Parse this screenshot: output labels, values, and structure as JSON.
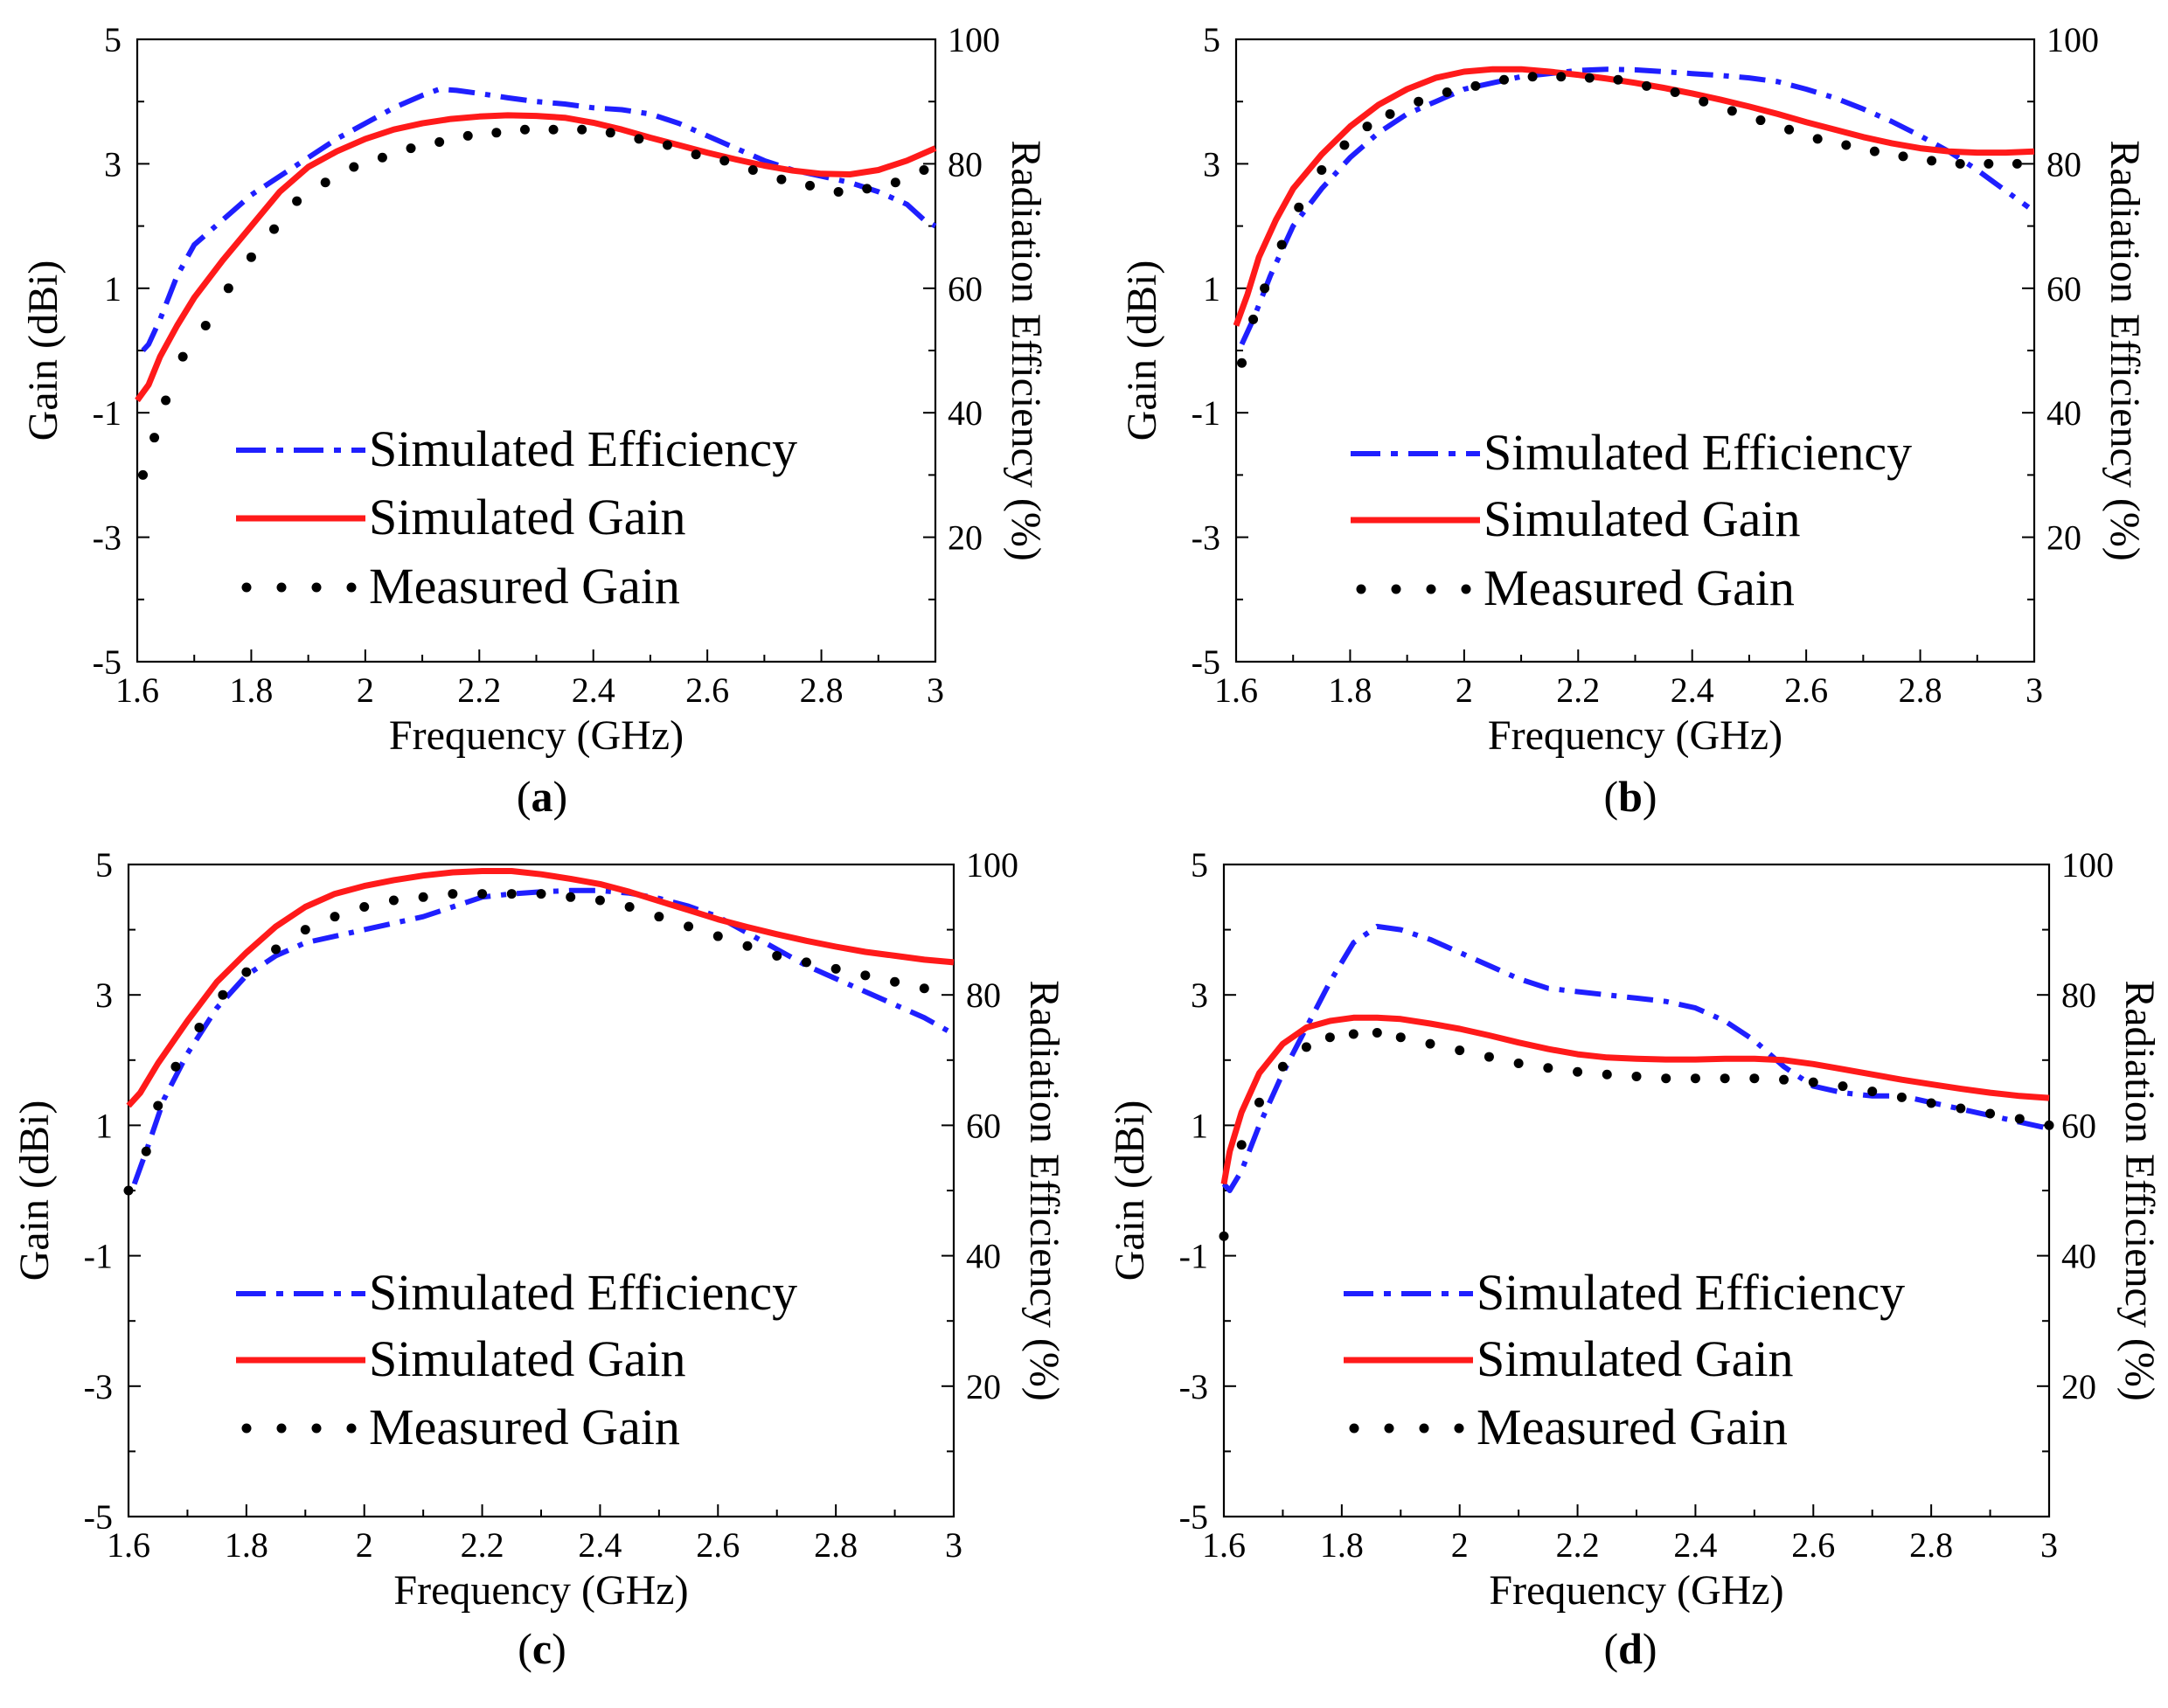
{
  "figure": {
    "legend": {
      "efficiency": "Simulated Efficiency",
      "simulated_gain": "Simulated Gain",
      "measured_gain": "Measured Gain"
    },
    "colors": {
      "efficiency": "#1f1fff",
      "simulated_gain": "#ff1a1a",
      "measured_gain": "#000000",
      "axes": "#000000"
    }
  },
  "chart_data": [
    {
      "panel": "a",
      "caption_open": "(",
      "caption_letter": "a",
      "caption_close": ")",
      "type": "line",
      "xlabel": "Frequency (GHz)",
      "ylabel": "Gain (dBi)",
      "y2label": "Radiation Efficiency (%)",
      "xlim": [
        1.6,
        3
      ],
      "ylim": [
        -5,
        5
      ],
      "y2lim": [
        0,
        100
      ],
      "xticks": [
        "1.6",
        "1.8",
        "2",
        "2.2",
        "2.4",
        "2.6",
        "2.8",
        "3"
      ],
      "yticks": [
        "5",
        "3",
        "1",
        "-1",
        "-3",
        "-5"
      ],
      "y2ticks": [
        "100",
        "80",
        "60",
        "40",
        "20"
      ],
      "series": [
        {
          "name": "Simulated Efficiency",
          "axis": "right",
          "x": [
            1.61,
            1.62,
            1.64,
            1.67,
            1.7,
            1.75,
            1.8,
            1.85,
            1.9,
            1.95,
            2.0,
            2.05,
            2.1,
            2.13,
            2.16,
            2.2,
            2.25,
            2.3,
            2.35,
            2.4,
            2.45,
            2.5,
            2.55,
            2.6,
            2.65,
            2.7,
            2.75,
            2.8,
            2.85,
            2.9,
            2.95,
            2.98,
            3.0
          ],
          "values": [
            50,
            51,
            55,
            62,
            67,
            71,
            75,
            78,
            81,
            84,
            86.5,
            89,
            91,
            92,
            91.8,
            91.3,
            90.6,
            90.0,
            89.6,
            89.0,
            88.7,
            88.0,
            86.5,
            84.5,
            82.5,
            80.5,
            79.0,
            78.0,
            77.0,
            75.5,
            73.5,
            71.0,
            70.0
          ]
        },
        {
          "name": "Simulated Gain",
          "axis": "left",
          "x": [
            1.6,
            1.62,
            1.64,
            1.67,
            1.7,
            1.75,
            1.8,
            1.85,
            1.9,
            1.95,
            2.0,
            2.05,
            2.1,
            2.15,
            2.2,
            2.25,
            2.3,
            2.35,
            2.4,
            2.45,
            2.5,
            2.55,
            2.6,
            2.65,
            2.7,
            2.75,
            2.8,
            2.85,
            2.9,
            2.95,
            3.0
          ],
          "values": [
            -0.8,
            -0.55,
            -0.1,
            0.4,
            0.85,
            1.45,
            2.0,
            2.55,
            2.95,
            3.2,
            3.4,
            3.55,
            3.65,
            3.72,
            3.76,
            3.78,
            3.77,
            3.74,
            3.66,
            3.55,
            3.42,
            3.3,
            3.18,
            3.07,
            2.97,
            2.89,
            2.84,
            2.83,
            2.9,
            3.05,
            3.25
          ]
        },
        {
          "name": "Measured Gain",
          "axis": "left",
          "x": [
            1.61,
            1.63,
            1.65,
            1.68,
            1.72,
            1.76,
            1.8,
            1.84,
            1.88,
            1.93,
            1.98,
            2.03,
            2.08,
            2.13,
            2.18,
            2.23,
            2.28,
            2.33,
            2.38,
            2.43,
            2.48,
            2.53,
            2.58,
            2.63,
            2.68,
            2.73,
            2.78,
            2.83,
            2.88,
            2.93,
            2.98
          ],
          "values": [
            -2.0,
            -1.4,
            -0.8,
            -0.1,
            0.4,
            1.0,
            1.5,
            1.95,
            2.4,
            2.7,
            2.95,
            3.1,
            3.25,
            3.35,
            3.45,
            3.5,
            3.55,
            3.55,
            3.55,
            3.5,
            3.4,
            3.3,
            3.15,
            3.05,
            2.9,
            2.75,
            2.65,
            2.55,
            2.6,
            2.7,
            2.9
          ]
        }
      ]
    },
    {
      "panel": "b",
      "caption_open": "(",
      "caption_letter": "b",
      "caption_close": ")",
      "type": "line",
      "xlabel": "Frequency (GHz)",
      "ylabel": "Gain (dBi)",
      "y2label": "Radiation Efficiency (%)",
      "xlim": [
        1.6,
        3
      ],
      "ylim": [
        -5,
        5
      ],
      "y2lim": [
        0,
        100
      ],
      "xticks": [
        "1.6",
        "1.8",
        "2",
        "2.2",
        "2.4",
        "2.6",
        "2.8",
        "3"
      ],
      "yticks": [
        "5",
        "3",
        "1",
        "-1",
        "-3",
        "-5"
      ],
      "y2ticks": [
        "100",
        "80",
        "60",
        "40",
        "20"
      ],
      "series": [
        {
          "name": "Simulated Efficiency",
          "axis": "right",
          "x": [
            1.61,
            1.63,
            1.66,
            1.7,
            1.75,
            1.8,
            1.85,
            1.9,
            1.95,
            2.0,
            2.05,
            2.1,
            2.15,
            2.2,
            2.25,
            2.3,
            2.35,
            2.4,
            2.45,
            2.5,
            2.55,
            2.6,
            2.65,
            2.7,
            2.75,
            2.8,
            2.85,
            2.9,
            2.93,
            2.96,
            2.99
          ],
          "values": [
            51,
            55,
            62,
            70,
            76,
            81,
            85,
            88,
            90,
            92,
            93,
            94,
            94.5,
            95,
            95.2,
            95.1,
            94.8,
            94.5,
            94.2,
            93.8,
            93.2,
            92,
            90.6,
            88.8,
            86.8,
            84.5,
            82.0,
            79.0,
            77.0,
            75.0,
            73.0
          ]
        },
        {
          "name": "Simulated Gain",
          "axis": "left",
          "x": [
            1.6,
            1.62,
            1.64,
            1.67,
            1.7,
            1.75,
            1.8,
            1.85,
            1.9,
            1.95,
            2.0,
            2.05,
            2.1,
            2.15,
            2.2,
            2.25,
            2.3,
            2.35,
            2.4,
            2.45,
            2.5,
            2.55,
            2.6,
            2.65,
            2.7,
            2.75,
            2.8,
            2.85,
            2.9,
            2.95,
            3.0
          ],
          "values": [
            0.4,
            0.9,
            1.5,
            2.1,
            2.6,
            3.15,
            3.6,
            3.95,
            4.2,
            4.38,
            4.48,
            4.52,
            4.52,
            4.48,
            4.43,
            4.37,
            4.3,
            4.22,
            4.13,
            4.03,
            3.92,
            3.8,
            3.67,
            3.55,
            3.43,
            3.33,
            3.25,
            3.2,
            3.18,
            3.18,
            3.2
          ]
        },
        {
          "name": "Measured Gain",
          "axis": "left",
          "x": [
            1.61,
            1.63,
            1.65,
            1.68,
            1.71,
            1.75,
            1.79,
            1.83,
            1.87,
            1.92,
            1.97,
            2.02,
            2.07,
            2.12,
            2.17,
            2.22,
            2.27,
            2.32,
            2.37,
            2.42,
            2.47,
            2.52,
            2.57,
            2.62,
            2.67,
            2.72,
            2.77,
            2.82,
            2.87,
            2.92,
            2.97
          ],
          "values": [
            -0.2,
            0.5,
            1.0,
            1.7,
            2.3,
            2.9,
            3.3,
            3.6,
            3.8,
            4.0,
            4.15,
            4.25,
            4.35,
            4.4,
            4.4,
            4.38,
            4.35,
            4.25,
            4.15,
            4.0,
            3.85,
            3.7,
            3.55,
            3.4,
            3.3,
            3.2,
            3.12,
            3.05,
            3.0,
            3.0,
            3.0
          ]
        }
      ]
    },
    {
      "panel": "c",
      "caption_open": "(",
      "caption_letter": "c",
      "caption_close": ")",
      "type": "line",
      "xlabel": "Frequency (GHz)",
      "ylabel": "Gain (dBi)",
      "y2label": "Radiation Efficiency (%)",
      "xlim": [
        1.6,
        3
      ],
      "ylim": [
        -5,
        5
      ],
      "y2lim": [
        0,
        100
      ],
      "xticks": [
        "1.6",
        "1.8",
        "2",
        "2.2",
        "2.4",
        "2.6",
        "2.8",
        "3"
      ],
      "yticks": [
        "5",
        "3",
        "1",
        "-1",
        "-3",
        "-5"
      ],
      "y2ticks": [
        "100",
        "80",
        "60",
        "40",
        "20"
      ],
      "series": [
        {
          "name": "Simulated Efficiency",
          "axis": "right",
          "x": [
            1.61,
            1.63,
            1.66,
            1.7,
            1.75,
            1.8,
            1.85,
            1.9,
            1.95,
            2.0,
            2.05,
            2.1,
            2.15,
            2.2,
            2.25,
            2.3,
            2.35,
            2.4,
            2.45,
            2.5,
            2.55,
            2.6,
            2.65,
            2.7,
            2.75,
            2.8,
            2.85,
            2.9,
            2.95,
            3.0
          ],
          "values": [
            51,
            56,
            64,
            71,
            78,
            83,
            86,
            88,
            89,
            90,
            91,
            92,
            93.5,
            95,
            95.5,
            95.8,
            96,
            96,
            95.6,
            94.8,
            93.6,
            92,
            89.5,
            87,
            84.5,
            82.5,
            80.5,
            78.5,
            76.5,
            74.0
          ]
        },
        {
          "name": "Simulated Gain",
          "axis": "left",
          "x": [
            1.6,
            1.62,
            1.65,
            1.7,
            1.75,
            1.8,
            1.85,
            1.9,
            1.95,
            2.0,
            2.05,
            2.1,
            2.15,
            2.2,
            2.25,
            2.3,
            2.35,
            2.4,
            2.45,
            2.5,
            2.55,
            2.6,
            2.65,
            2.7,
            2.75,
            2.8,
            2.85,
            2.9,
            2.95,
            3.0
          ],
          "values": [
            1.3,
            1.5,
            1.95,
            2.6,
            3.2,
            3.65,
            4.05,
            4.35,
            4.55,
            4.67,
            4.76,
            4.83,
            4.88,
            4.9,
            4.9,
            4.85,
            4.78,
            4.7,
            4.58,
            4.44,
            4.3,
            4.16,
            4.04,
            3.93,
            3.83,
            3.74,
            3.66,
            3.6,
            3.54,
            3.5
          ]
        },
        {
          "name": "Measured Gain",
          "axis": "left",
          "x": [
            1.6,
            1.63,
            1.65,
            1.68,
            1.72,
            1.76,
            1.8,
            1.85,
            1.9,
            1.95,
            2.0,
            2.05,
            2.1,
            2.15,
            2.2,
            2.25,
            2.3,
            2.35,
            2.4,
            2.45,
            2.5,
            2.55,
            2.6,
            2.65,
            2.7,
            2.75,
            2.8,
            2.85,
            2.9,
            2.95
          ],
          "values": [
            0.0,
            0.6,
            1.3,
            1.9,
            2.5,
            3.0,
            3.35,
            3.7,
            4.0,
            4.2,
            4.35,
            4.45,
            4.5,
            4.55,
            4.55,
            4.55,
            4.55,
            4.5,
            4.45,
            4.35,
            4.2,
            4.05,
            3.9,
            3.75,
            3.6,
            3.5,
            3.4,
            3.3,
            3.2,
            3.1
          ]
        }
      ]
    },
    {
      "panel": "d",
      "caption_open": "(",
      "caption_letter": "d",
      "caption_close": ")",
      "type": "line",
      "xlabel": "Frequency (GHz)",
      "ylabel": "Gain (dBi)",
      "y2label": "Radiation Efficiency (%)",
      "xlim": [
        1.6,
        3
      ],
      "ylim": [
        -5,
        5
      ],
      "y2lim": [
        0,
        100
      ],
      "xticks": [
        "1.6",
        "1.8",
        "2",
        "2.2",
        "2.4",
        "2.6",
        "2.8",
        "3"
      ],
      "yticks": [
        "5",
        "3",
        "1",
        "-1",
        "-3",
        "-5"
      ],
      "y2ticks": [
        "100",
        "80",
        "60",
        "40",
        "20"
      ],
      "series": [
        {
          "name": "Simulated Efficiency",
          "axis": "right",
          "x": [
            1.6,
            1.61,
            1.63,
            1.66,
            1.7,
            1.74,
            1.78,
            1.82,
            1.86,
            1.9,
            1.95,
            2.0,
            2.05,
            2.1,
            2.15,
            2.2,
            2.25,
            2.3,
            2.35,
            2.4,
            2.45,
            2.5,
            2.55,
            2.6,
            2.65,
            2.7,
            2.75,
            2.8,
            2.85,
            2.9,
            2.95,
            3.0
          ],
          "values": [
            51,
            50,
            53,
            60,
            68,
            75,
            82,
            88,
            90.5,
            90,
            88.5,
            86.5,
            84.5,
            82.5,
            81,
            80.5,
            80,
            79.5,
            79,
            78,
            76,
            73,
            69,
            66,
            65,
            64.5,
            64.5,
            63.5,
            62.5,
            61.5,
            60.5,
            59.5
          ]
        },
        {
          "name": "Simulated Gain",
          "axis": "left",
          "x": [
            1.6,
            1.61,
            1.63,
            1.66,
            1.7,
            1.74,
            1.78,
            1.82,
            1.86,
            1.9,
            1.95,
            2.0,
            2.05,
            2.1,
            2.15,
            2.2,
            2.25,
            2.3,
            2.35,
            2.4,
            2.45,
            2.5,
            2.55,
            2.6,
            2.65,
            2.7,
            2.75,
            2.8,
            2.85,
            2.9,
            2.95,
            3.0
          ],
          "values": [
            0.1,
            0.6,
            1.2,
            1.8,
            2.25,
            2.5,
            2.6,
            2.65,
            2.65,
            2.63,
            2.56,
            2.48,
            2.38,
            2.27,
            2.17,
            2.09,
            2.04,
            2.02,
            2.01,
            2.01,
            2.02,
            2.02,
            2.0,
            1.94,
            1.86,
            1.78,
            1.7,
            1.63,
            1.56,
            1.5,
            1.45,
            1.42
          ]
        },
        {
          "name": "Measured Gain",
          "axis": "left",
          "x": [
            1.6,
            1.63,
            1.66,
            1.7,
            1.74,
            1.78,
            1.82,
            1.86,
            1.9,
            1.95,
            2.0,
            2.05,
            2.1,
            2.15,
            2.2,
            2.25,
            2.3,
            2.35,
            2.4,
            2.45,
            2.5,
            2.55,
            2.6,
            2.65,
            2.7,
            2.75,
            2.8,
            2.85,
            2.9,
            2.95,
            3.0
          ],
          "values": [
            -0.7,
            0.7,
            1.35,
            1.9,
            2.2,
            2.35,
            2.4,
            2.42,
            2.35,
            2.25,
            2.15,
            2.05,
            1.95,
            1.88,
            1.82,
            1.78,
            1.75,
            1.72,
            1.72,
            1.72,
            1.72,
            1.7,
            1.66,
            1.6,
            1.52,
            1.43,
            1.34,
            1.26,
            1.18,
            1.1,
            1.0
          ]
        }
      ]
    }
  ]
}
